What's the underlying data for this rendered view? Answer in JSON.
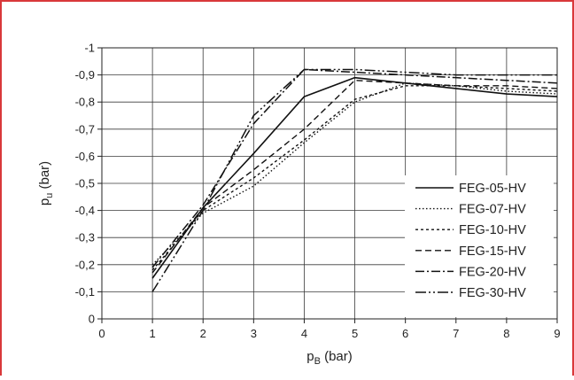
{
  "chart_data": {
    "type": "line",
    "xlabel_main": "p",
    "xlabel_sub": "B",
    "xlabel_unit": " (bar)",
    "ylabel_main": "p",
    "ylabel_sub": "u",
    "ylabel_unit": " (bar)",
    "xlim": [
      0,
      9
    ],
    "ylim": [
      0,
      -1
    ],
    "grid": true,
    "legend_position": "right",
    "x_ticks": [
      "0",
      "1",
      "2",
      "3",
      "4",
      "5",
      "6",
      "7",
      "8",
      "9"
    ],
    "y_ticks": [
      "0",
      "-0,1",
      "-0,2",
      "-0,3",
      "-0,4",
      "-0,5",
      "-0,6",
      "-0,7",
      "-0,8",
      "-0,9",
      "-1"
    ],
    "x": [
      1,
      2,
      3,
      4,
      5,
      6,
      7,
      8,
      9
    ],
    "series": [
      {
        "name": "FEG-05-HV",
        "dash": "",
        "width": 1.6,
        "values": [
          -0.15,
          -0.41,
          -0.61,
          -0.82,
          -0.89,
          -0.87,
          -0.85,
          -0.83,
          -0.82
        ]
      },
      {
        "name": "FEG-07-HV",
        "dash": "1.5 2.5",
        "width": 1.4,
        "values": [
          -0.2,
          -0.39,
          -0.49,
          -0.65,
          -0.8,
          -0.87,
          -0.86,
          -0.84,
          -0.83
        ]
      },
      {
        "name": "FEG-10-HV",
        "dash": "3 3",
        "width": 1.4,
        "values": [
          -0.18,
          -0.4,
          -0.52,
          -0.66,
          -0.81,
          -0.86,
          -0.86,
          -0.85,
          -0.84
        ]
      },
      {
        "name": "FEG-15-HV",
        "dash": "7 4",
        "width": 1.4,
        "values": [
          -0.17,
          -0.41,
          -0.55,
          -0.7,
          -0.88,
          -0.87,
          -0.86,
          -0.86,
          -0.85
        ]
      },
      {
        "name": "FEG-20-HV",
        "dash": "10 3 2 3",
        "width": 1.5,
        "values": [
          -0.19,
          -0.42,
          -0.72,
          -0.92,
          -0.91,
          -0.9,
          -0.89,
          -0.88,
          -0.87
        ]
      },
      {
        "name": "FEG-30-HV",
        "dash": "12 3 2 3 2 3",
        "width": 1.5,
        "values": [
          -0.1,
          -0.4,
          -0.75,
          -0.92,
          -0.92,
          -0.91,
          -0.9,
          -0.9,
          -0.9
        ]
      }
    ]
  }
}
